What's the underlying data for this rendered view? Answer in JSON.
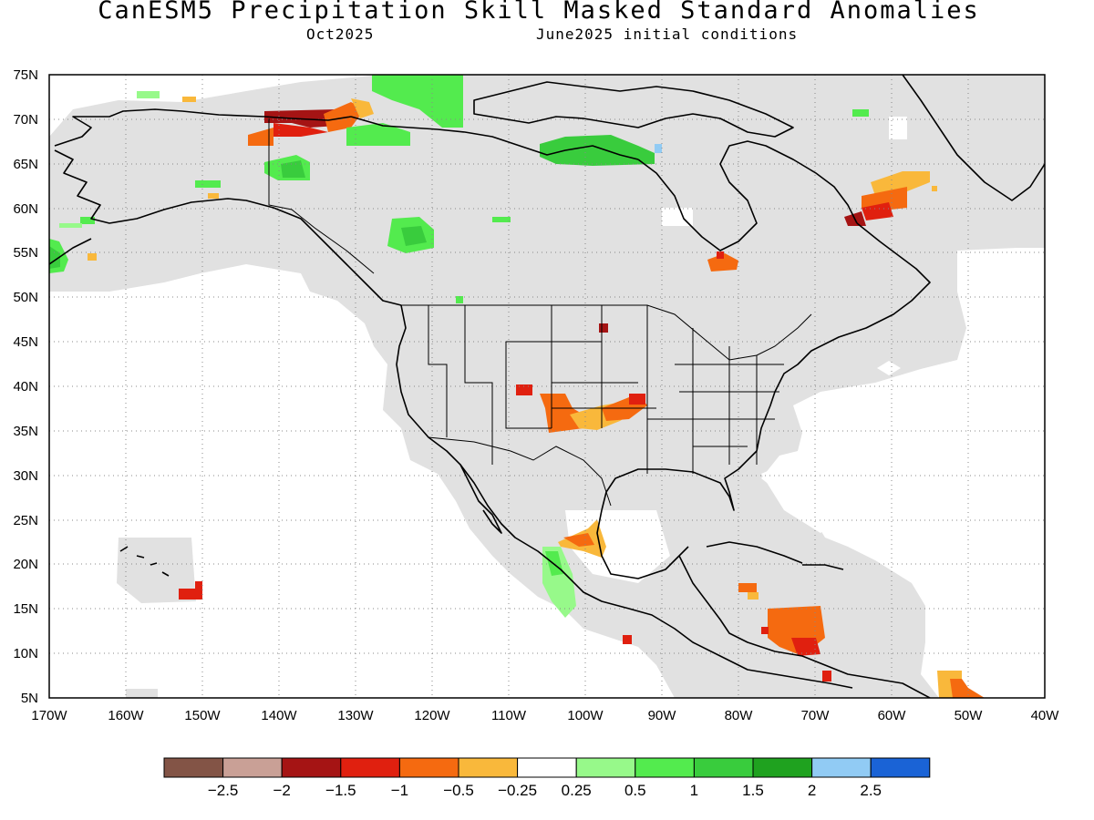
{
  "title": "CanESM5 Precipitation Skill Masked Standard Anomalies",
  "subtitle_left": "Oct2025",
  "subtitle_right": "June2025 initial conditions",
  "map": {
    "lon_range": [
      -170,
      -40
    ],
    "lat_range": [
      5,
      75
    ],
    "lat_labels": [
      "5N",
      "10N",
      "15N",
      "20N",
      "25N",
      "30N",
      "35N",
      "40N",
      "45N",
      "50N",
      "55N",
      "60N",
      "65N",
      "70N",
      "75N"
    ],
    "lon_labels": [
      "170W",
      "160W",
      "150W",
      "140W",
      "130W",
      "120W",
      "110W",
      "100W",
      "90W",
      "80W",
      "70W",
      "60W",
      "50W",
      "40W"
    ],
    "colors": {
      "mask": "#e1e1e1",
      "coast": "#000000",
      "grid": "#888888"
    }
  },
  "colorbar": {
    "colors": [
      "#835446",
      "#c9a096",
      "#a51414",
      "#e0200f",
      "#f56a10",
      "#f9b83b",
      "#ffffff",
      "#97f98a",
      "#53eb4e",
      "#39cc3d",
      "#1fa21f",
      "#91cbf4",
      "#1a63d6"
    ],
    "labels": [
      "−2.5",
      "−2",
      "−1.5",
      "−1",
      "−0.5",
      "−0.25",
      "0.25",
      "0.5",
      "1",
      "1.5",
      "2",
      "2.5"
    ]
  },
  "anomaly_patches": [
    {
      "region": "north-alaska-coast",
      "lon": -138,
      "lat": 70,
      "color": "#e0200f"
    },
    {
      "region": "north-alaska-coast-2",
      "lon": -133,
      "lat": 70.5,
      "color": "#f56a10"
    },
    {
      "region": "beaufort",
      "lon": -118,
      "lat": 72,
      "color": "#53eb4e"
    },
    {
      "region": "yukon",
      "lon": -137,
      "lat": 64,
      "color": "#53eb4e"
    },
    {
      "region": "bc-interior",
      "lon": -121,
      "lat": 56.5,
      "color": "#53eb4e"
    },
    {
      "region": "kivalliq",
      "lon": -100,
      "lat": 66,
      "color": "#39cc3d"
    },
    {
      "region": "labrador",
      "lon": -61,
      "lat": 60,
      "color": "#e0200f"
    },
    {
      "region": "james-bay",
      "lon": -81,
      "lat": 53,
      "color": "#f56a10"
    },
    {
      "region": "colorado",
      "lon": -105,
      "lat": 37,
      "color": "#f56a10"
    },
    {
      "region": "kansas",
      "lon": -98,
      "lat": 36.5,
      "color": "#f9b83b"
    },
    {
      "region": "west-mexico",
      "lon": -104,
      "lat": 19.5,
      "color": "#97f98a"
    },
    {
      "region": "gulf-mexico-sw",
      "lon": -100,
      "lat": 22.5,
      "color": "#f9b83b"
    },
    {
      "region": "caribbean",
      "lon": -73,
      "lat": 12.5,
      "color": "#f56a10"
    },
    {
      "region": "south-alaska",
      "lon": -168,
      "lat": 54,
      "color": "#39cc3d"
    },
    {
      "region": "hawaii-se",
      "lon": -151.5,
      "lat": 17,
      "color": "#e0200f"
    },
    {
      "region": "atlantic-sw",
      "lon": -51,
      "lat": 7,
      "color": "#f9b83b"
    }
  ]
}
